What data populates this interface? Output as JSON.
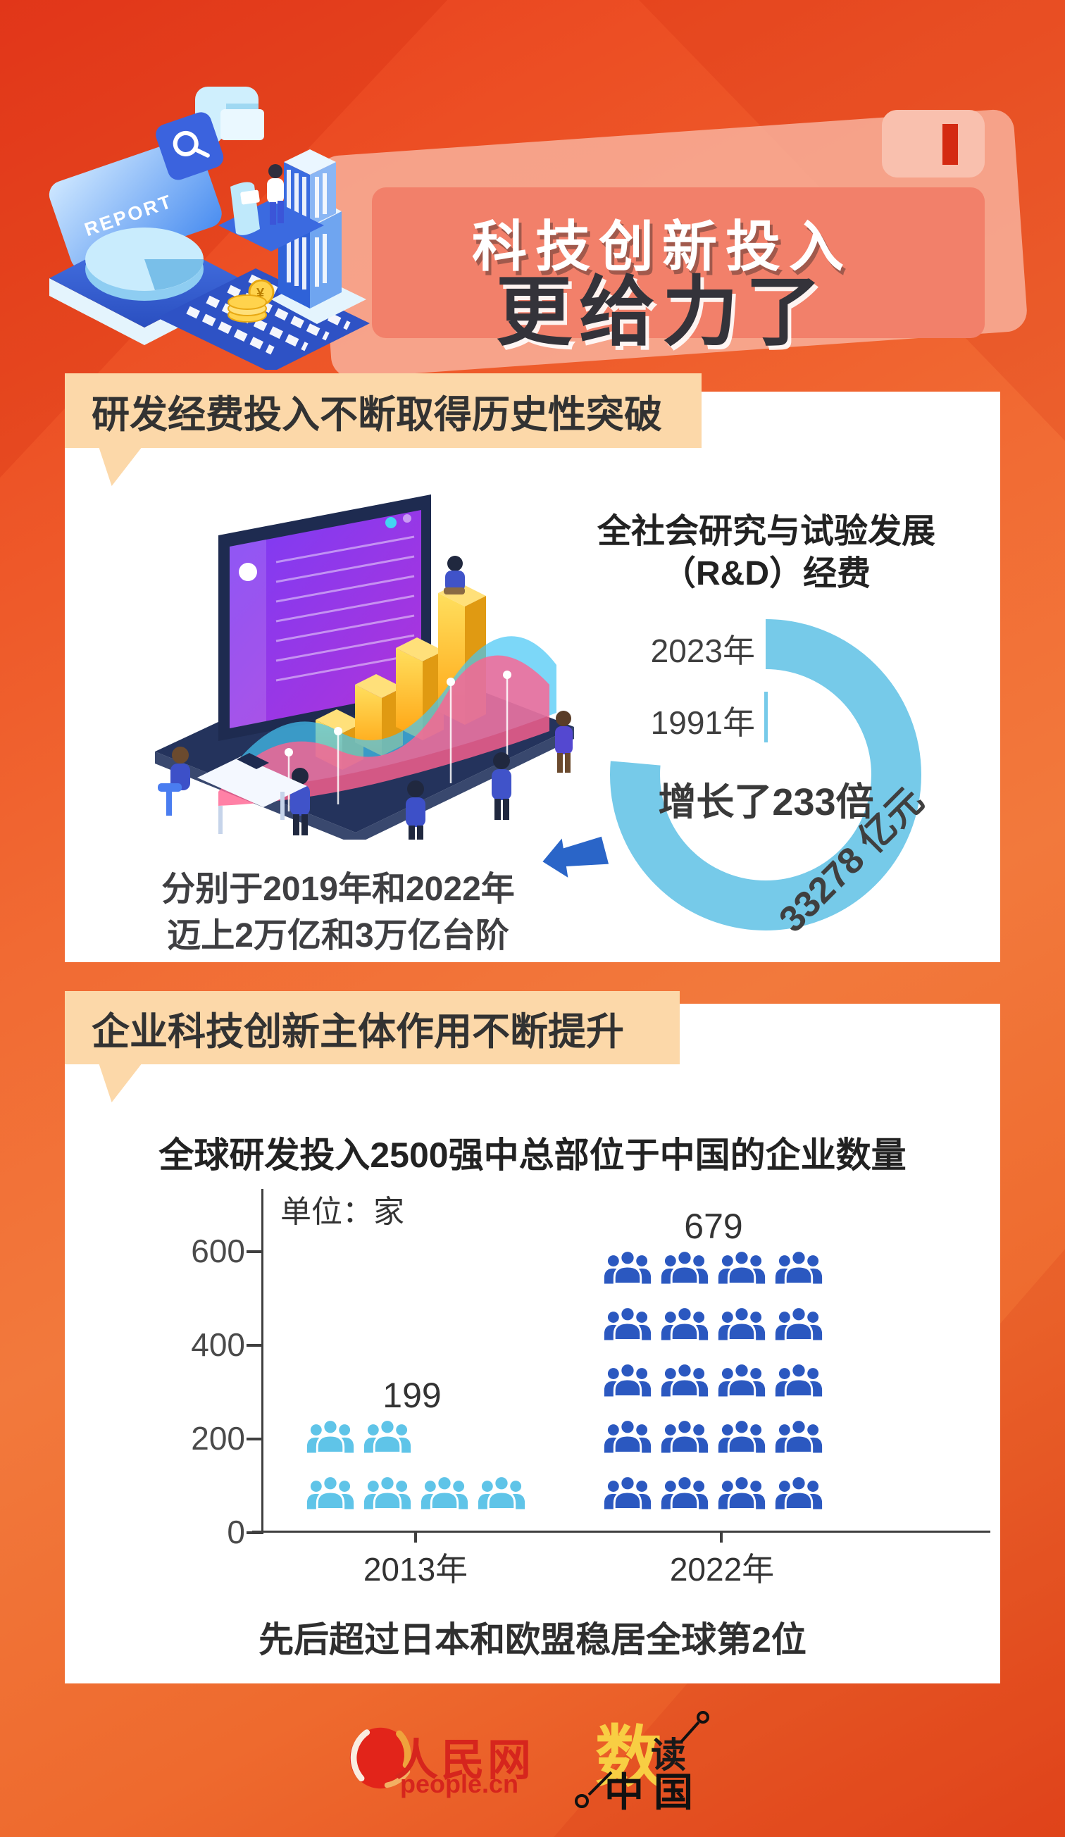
{
  "header": {
    "title_line1": "科技创新投入",
    "title_line2": "更给力了",
    "report_label": "REPORT"
  },
  "section1": {
    "banner": "研发经费投入不断取得历史性突破",
    "caption_line1": "分别于2019年和2022年",
    "caption_line2": "迈上2万亿和3万亿台阶"
  },
  "section2": {
    "banner": "企业科技创新主体作用不断提升"
  },
  "footer": {
    "people_logo_text": "人民网",
    "people_logo_sub": "people.cn",
    "shudu_char1": "数",
    "shudu_char2": "读",
    "shudu_char3": "中国"
  },
  "colors": {
    "background_orange": "#ee5a28",
    "banner_salmon": "#f2806a",
    "section_header_peach": "#fcd8a9",
    "donut_blue": "#76cae9",
    "picto_2013_blue": "#5fc4e8",
    "picto_2022_blue": "#2b58c0",
    "arrow_blue": "#2a65c8",
    "logo_red": "#d6251d",
    "shudu_yellow": "#f8ce43"
  },
  "chart_data": [
    {
      "type": "donut",
      "title": "全社会研究与试验发展（R&D）经费",
      "title_line1": "全社会研究与试验发展",
      "title_line2": "（R&D）经费",
      "segments": [
        {
          "label": "2023年",
          "value_label": "33278 亿元",
          "arc_degrees": 275
        },
        {
          "label": "1991年",
          "arc_degrees": 2
        }
      ],
      "center_label": "增长了233倍",
      "color": "#76cae9",
      "legend_position": "left",
      "annotation": "分别于2019年和2022年迈上2万亿和3万亿台阶"
    },
    {
      "type": "pictogram",
      "title": "全球研发投入2500强中总部位于中国的企业数量",
      "unit": "单位：家",
      "categories": [
        "2013年",
        "2022年"
      ],
      "values": [
        199,
        679
      ],
      "icon": "people-group",
      "icon_rows": [
        [
          2,
          4
        ],
        [
          4,
          4,
          4,
          4,
          4
        ]
      ],
      "colors": [
        "#5fc4e8",
        "#2b58c0"
      ],
      "y_ticks": [
        0,
        200,
        400,
        600
      ],
      "ylim": [
        0,
        700
      ],
      "grid": false,
      "note": "先后超过日本和欧盟稳居全球第2位"
    }
  ]
}
